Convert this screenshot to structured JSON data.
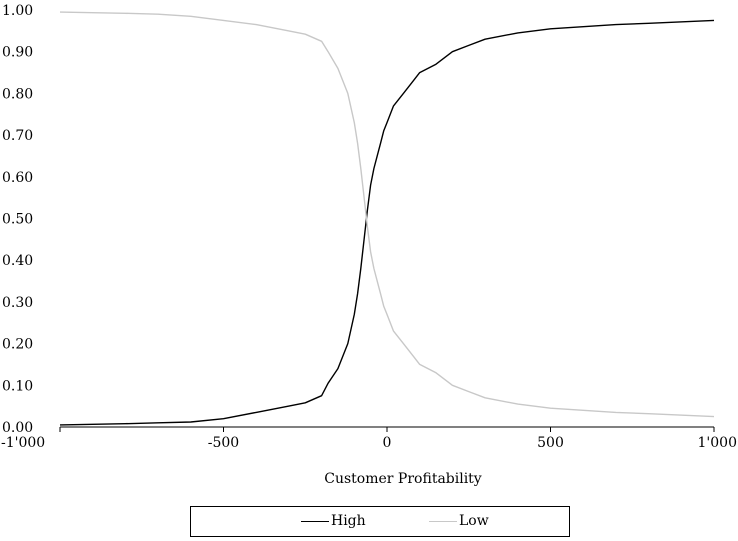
{
  "chart_data": {
    "type": "line",
    "title": "",
    "xlabel": "Customer Profitability",
    "ylabel": "",
    "xlim": [
      -1000,
      1000
    ],
    "ylim": [
      0,
      1
    ],
    "x_ticks": [
      -1000,
      -500,
      0,
      500,
      1000
    ],
    "x_tick_labels": [
      "-1'000",
      "-500",
      "0",
      "500",
      "1'000"
    ],
    "y_ticks": [
      0,
      0.1,
      0.2,
      0.3,
      0.4,
      0.5,
      0.6,
      0.7,
      0.8,
      0.9,
      1.0
    ],
    "y_tick_labels": [
      "0.00",
      "0.10",
      "0.20",
      "0.30",
      "0.40",
      "0.50",
      "0.60",
      "0.70",
      "0.80",
      "0.90",
      "1.00"
    ],
    "grid": false,
    "legend_position": "bottom",
    "series": [
      {
        "name": "High",
        "color": "#000000",
        "x": [
          -1000,
          -800,
          -700,
          -600,
          -500,
          -400,
          -300,
          -250,
          -200,
          -180,
          -150,
          -120,
          -100,
          -90,
          -80,
          -70,
          -60,
          -50,
          -40,
          -30,
          -20,
          -10,
          0,
          20,
          50,
          80,
          100,
          150,
          200,
          250,
          300,
          400,
          500,
          600,
          700,
          800,
          1000
        ],
        "y": [
          0.005,
          0.008,
          0.01,
          0.012,
          0.02,
          0.035,
          0.05,
          0.058,
          0.075,
          0.105,
          0.14,
          0.2,
          0.27,
          0.32,
          0.38,
          0.45,
          0.52,
          0.58,
          0.62,
          0.65,
          0.68,
          0.71,
          0.73,
          0.77,
          0.8,
          0.83,
          0.85,
          0.87,
          0.9,
          0.915,
          0.93,
          0.945,
          0.955,
          0.96,
          0.965,
          0.968,
          0.975
        ]
      },
      {
        "name": "Low",
        "color": "#c8c8c8",
        "x": [
          -1000,
          -800,
          -700,
          -600,
          -500,
          -400,
          -300,
          -250,
          -200,
          -180,
          -150,
          -120,
          -100,
          -90,
          -80,
          -70,
          -60,
          -50,
          -40,
          -30,
          -20,
          -10,
          0,
          20,
          50,
          80,
          100,
          150,
          200,
          250,
          300,
          400,
          500,
          600,
          700,
          800,
          1000
        ],
        "y": [
          0.995,
          0.992,
          0.99,
          0.985,
          0.975,
          0.965,
          0.95,
          0.942,
          0.925,
          0.9,
          0.86,
          0.8,
          0.73,
          0.68,
          0.62,
          0.55,
          0.48,
          0.42,
          0.38,
          0.35,
          0.32,
          0.29,
          0.27,
          0.23,
          0.2,
          0.17,
          0.15,
          0.13,
          0.1,
          0.085,
          0.07,
          0.055,
          0.045,
          0.04,
          0.035,
          0.032,
          0.025
        ]
      }
    ]
  },
  "legend": {
    "high_label": "High",
    "low_label": "Low"
  }
}
